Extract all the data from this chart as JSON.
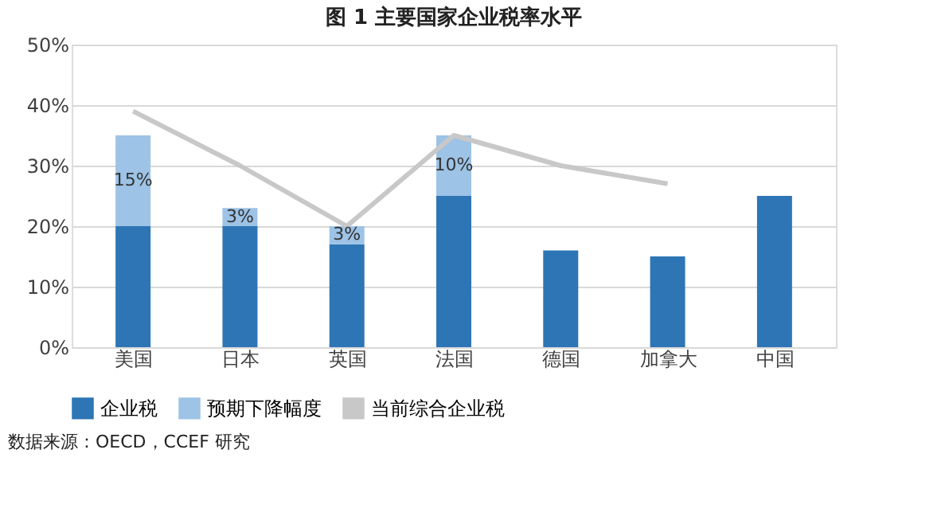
{
  "chart_data": {
    "type": "bar",
    "title": "图 1  主要国家企业税率水平",
    "categories": [
      "美国",
      "日本",
      "英国",
      "法国",
      "德国",
      "加拿大",
      "中国"
    ],
    "stacked": true,
    "series": [
      {
        "name": "企业税",
        "color": "#2e75b6",
        "values": [
          20,
          20,
          17,
          25,
          16,
          15,
          25
        ]
      },
      {
        "name": "预期下降幅度",
        "color": "#9dc3e6",
        "values": [
          15,
          3,
          3,
          10,
          null,
          null,
          null
        ],
        "value_labels": [
          "15%",
          "3%",
          "3%",
          "10%",
          null,
          null,
          null
        ]
      },
      {
        "name": "当前综合企业税",
        "type": "line",
        "color": "#c8c8c8",
        "values": [
          39,
          30,
          20,
          35,
          30,
          27,
          null
        ]
      }
    ],
    "ylim": [
      0,
      50
    ],
    "yticks": [
      {
        "value": 0,
        "label": "0%"
      },
      {
        "value": 10,
        "label": "10%"
      },
      {
        "value": 20,
        "label": "20%"
      },
      {
        "value": 30,
        "label": "30%"
      },
      {
        "value": 40,
        "label": "40%"
      },
      {
        "value": 50,
        "label": "50%"
      }
    ],
    "grid": "y",
    "legend": "bottom",
    "marker": "none",
    "annotations": [
      "数据来源：OECD，CCEF 研究"
    ]
  }
}
